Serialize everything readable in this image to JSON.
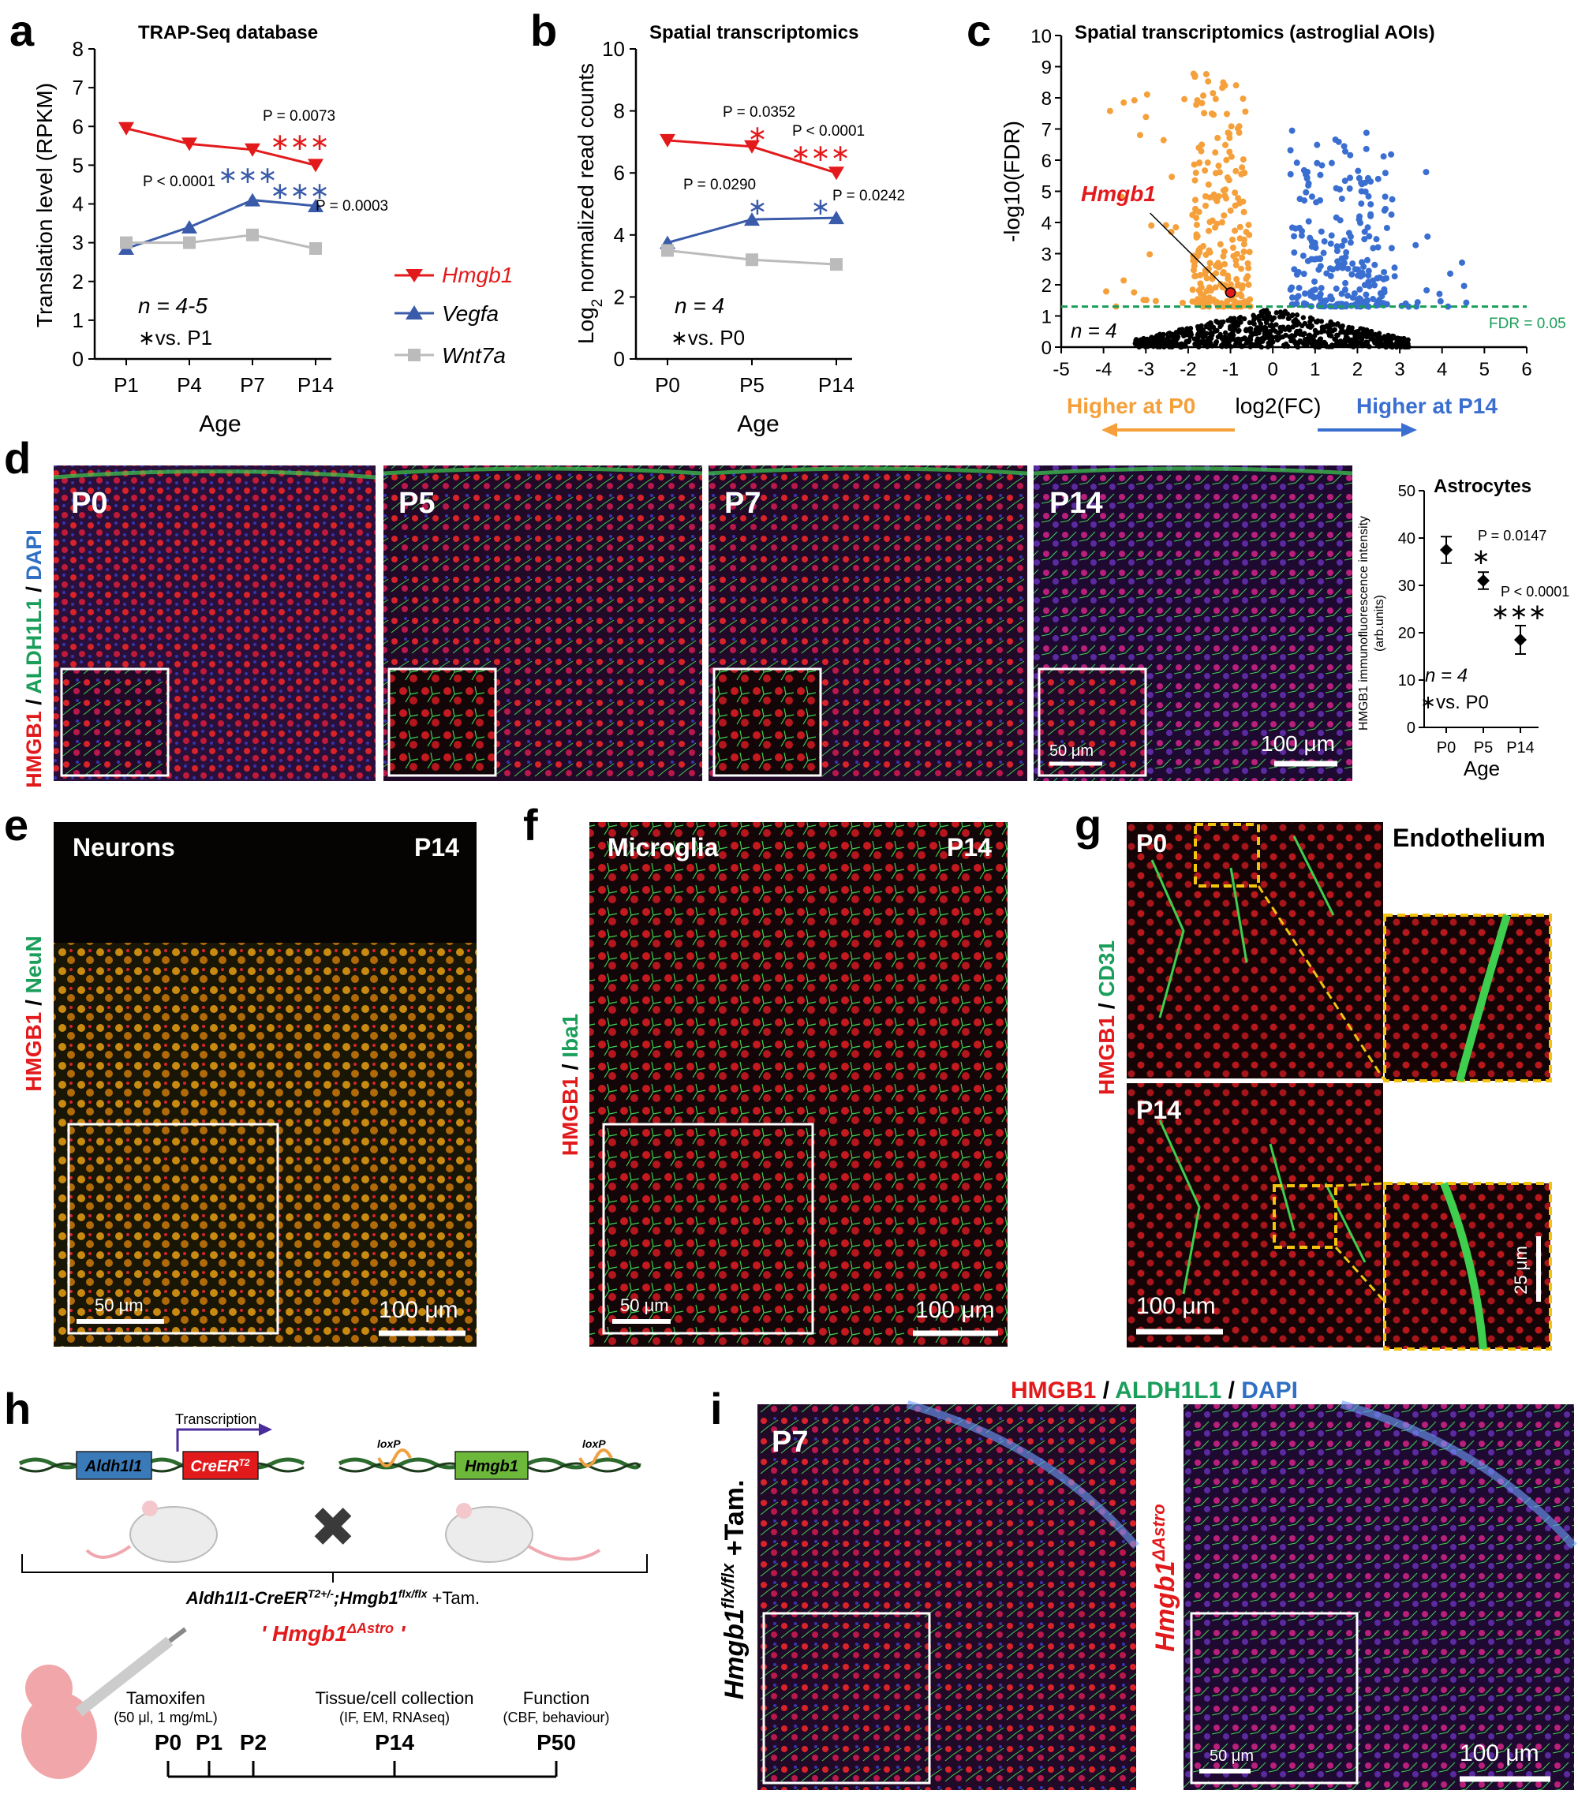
{
  "colors": {
    "hmgb1_red": "#e31a1c",
    "vegfa_blue": "#3a5ba9",
    "wnt7a_gray": "#bbbbbb",
    "orange": "#f5a03a",
    "blue_dots": "#3a6fd1",
    "fdr_green": "#1a9e5a",
    "micro_red": "#d8232a",
    "micro_green": "#3fcf4f",
    "micro_blue": "#2233aa",
    "yellow_dash": "#f2c40e"
  },
  "panel_letters": {
    "a": "a",
    "b": "b",
    "c": "c",
    "d": "d",
    "e": "e",
    "f": "f",
    "g": "g",
    "h": "h",
    "i": "i"
  },
  "panel_a": {
    "title": "TRAP-Seq database",
    "ylabel": "Translation level (RPKM)",
    "xlabel": "Age",
    "n_label": "n = 4-5",
    "vs_label": "∗vs. P1",
    "p_values": [
      "P = 0.0073",
      "P < 0.0001",
      "P = 0.0003"
    ],
    "stars": [
      "∗∗∗",
      "∗∗∗",
      "∗∗∗"
    ]
  },
  "legend": {
    "items": [
      "Hmgb1",
      "Vegfa",
      "Wnt7a"
    ]
  },
  "panel_b": {
    "title": "Spatial transcriptomics",
    "ylabel": "Log2 normalized read counts",
    "ylabel_main": "Log",
    "ylabel_sub": "2",
    "ylabel_rest": " normalized read counts",
    "xlabel": "Age",
    "n_label": "n = 4",
    "vs_label": "∗vs. P0",
    "p_values": [
      "P = 0.0352",
      "P < 0.0001",
      "P = 0.0290",
      "P = 0.0242"
    ],
    "stars": [
      "∗",
      "∗∗∗",
      "∗",
      "∗"
    ]
  },
  "panel_c": {
    "title": "Spatial transcriptomics (astroglial AOIs)",
    "ylabel": "-log10(FDR)",
    "xlabel": "log2(FC)",
    "gene_label": "Hmgb1",
    "n_label": "n = 4",
    "fdr_label": "FDR = 0.05",
    "higher_p0": "Higher at P0",
    "higher_p14": "Higher at P14"
  },
  "panel_d": {
    "stain": [
      "HMGB1",
      " / ",
      "ALDH1L1",
      " / ",
      "DAPI"
    ],
    "ages": [
      "P0",
      "P5",
      "P7",
      "P14"
    ],
    "scalebar_main": "100 μm",
    "scalebar_inset": "50 μm",
    "chart_title": "Astrocytes",
    "chart_ylabel": "HMGB1 immunofluorescence intensity",
    "chart_ylabel2": "(arb.units)",
    "chart_xlabel": "Age",
    "p_values": [
      "P = 0.0147",
      "P < 0.0001"
    ],
    "stars": [
      "∗",
      "∗∗∗"
    ],
    "n_label": "n = 4",
    "vs_label": "∗vs. P0"
  },
  "panel_e": {
    "title": "Neurons",
    "age": "P14",
    "stain": [
      "HMGB1",
      " / ",
      "NeuN"
    ],
    "scalebar_main": "100 μm",
    "scalebar_inset": "50 μm"
  },
  "panel_f": {
    "title": "Microglia",
    "age": "P14",
    "stain": [
      "HMGB1",
      " / ",
      "Iba1"
    ],
    "scalebar_main": "100 μm",
    "scalebar_inset": "50 μm"
  },
  "panel_g": {
    "title": "Endothelium",
    "ages": [
      "P0",
      "P14"
    ],
    "stain": [
      "HMGB1",
      " / ",
      "CD31"
    ],
    "scalebar_main": "100 μm",
    "scalebar_inset": "25 μm"
  },
  "panel_h": {
    "transcription": "Transcription",
    "gene1": "Aldh1l1",
    "gene2": "CreER",
    "gene2_sup": "T2",
    "loxp": "loxP",
    "gene3": "Hmgb1",
    "cross": "✖",
    "genotype": "Aldh1l1-CreER",
    "genotype_sup1": "T2+/-",
    "genotype_mid": ";Hmgb1",
    "genotype_sup2": "flx/flx",
    "genotype_end": " +Tam.",
    "model_name": "' Hmgb1",
    "model_sup": "ΔAstro",
    "model_end": " '",
    "timeline_labels": [
      {
        "title": "Tamoxifen",
        "sub": "(50 μl, 1 mg/mL)"
      },
      {
        "title": "Tissue/cell collection",
        "sub": "(IF, EM, RNAseq)"
      },
      {
        "title": "Function",
        "sub": "(CBF, behaviour)"
      }
    ],
    "timepoints": [
      "P0",
      "P1",
      "P2",
      "P14",
      "P50"
    ]
  },
  "panel_i": {
    "stain": [
      "HMGB1",
      " / ",
      "ALDH1L1",
      " / ",
      "DAPI"
    ],
    "age": "P7",
    "left_label": "Hmgb1",
    "left_sup": "flx/flx",
    "left_end": " +Tam.",
    "right_label": "Hmgb1",
    "right_sup": "ΔAstro",
    "scalebar_main": "100 μm",
    "scalebar_inset": "50 μm"
  },
  "chart_data": [
    {
      "type": "line",
      "title": "TRAP-Seq database",
      "xlabel": "Age",
      "ylabel": "Translation level (RPKM)",
      "categories": [
        "P1",
        "P4",
        "P7",
        "P14"
      ],
      "ylim": [
        0,
        8
      ],
      "yticks": [
        0,
        1,
        2,
        3,
        4,
        5,
        6,
        7,
        8
      ],
      "series": [
        {
          "name": "Hmgb1",
          "values": [
            5.95,
            5.55,
            5.4,
            5.0
          ]
        },
        {
          "name": "Vegfa",
          "values": [
            2.85,
            3.4,
            4.1,
            3.95
          ]
        },
        {
          "name": "Wnt7a",
          "values": [
            3.0,
            3.0,
            3.2,
            2.85
          ]
        }
      ]
    },
    {
      "type": "line",
      "title": "Spatial transcriptomics",
      "xlabel": "Age",
      "ylabel": "Log2 normalized read counts",
      "categories": [
        "P0",
        "P5",
        "P14"
      ],
      "ylim": [
        0,
        10
      ],
      "yticks": [
        0,
        2,
        4,
        6,
        8,
        10
      ],
      "series": [
        {
          "name": "Hmgb1",
          "values": [
            7.05,
            6.85,
            6.0
          ]
        },
        {
          "name": "Vegfa",
          "values": [
            3.75,
            4.5,
            4.55
          ]
        },
        {
          "name": "Wnt7a",
          "values": [
            3.5,
            3.2,
            3.05
          ]
        }
      ]
    },
    {
      "type": "scatter",
      "title": "Spatial transcriptomics (astroglial AOIs)",
      "xlabel": "log2(FC)",
      "ylabel": "-log10(FDR)",
      "xlim": [
        -5,
        6
      ],
      "ylim": [
        0,
        10
      ],
      "xticks": [
        -5,
        -4,
        -3,
        -2,
        -1,
        0,
        1,
        2,
        3,
        4,
        5,
        6
      ],
      "yticks": [
        0,
        1,
        2,
        3,
        4,
        5,
        6,
        7,
        8,
        9,
        10
      ],
      "fdr_threshold": 1.3,
      "highlight": {
        "name": "Hmgb1",
        "x": -1.0,
        "y": 1.75
      }
    },
    {
      "type": "scatter",
      "title": "Astrocytes",
      "xlabel": "Age",
      "ylabel": "HMGB1 immunofluorescence intensity (arb.units)",
      "categories": [
        "P0",
        "P5",
        "P14"
      ],
      "ylim": [
        0,
        50
      ],
      "yticks": [
        0,
        10,
        20,
        30,
        40,
        50
      ],
      "values": [
        37.5,
        31.0,
        18.5
      ],
      "errors": [
        2.8,
        1.8,
        3.0
      ]
    }
  ]
}
